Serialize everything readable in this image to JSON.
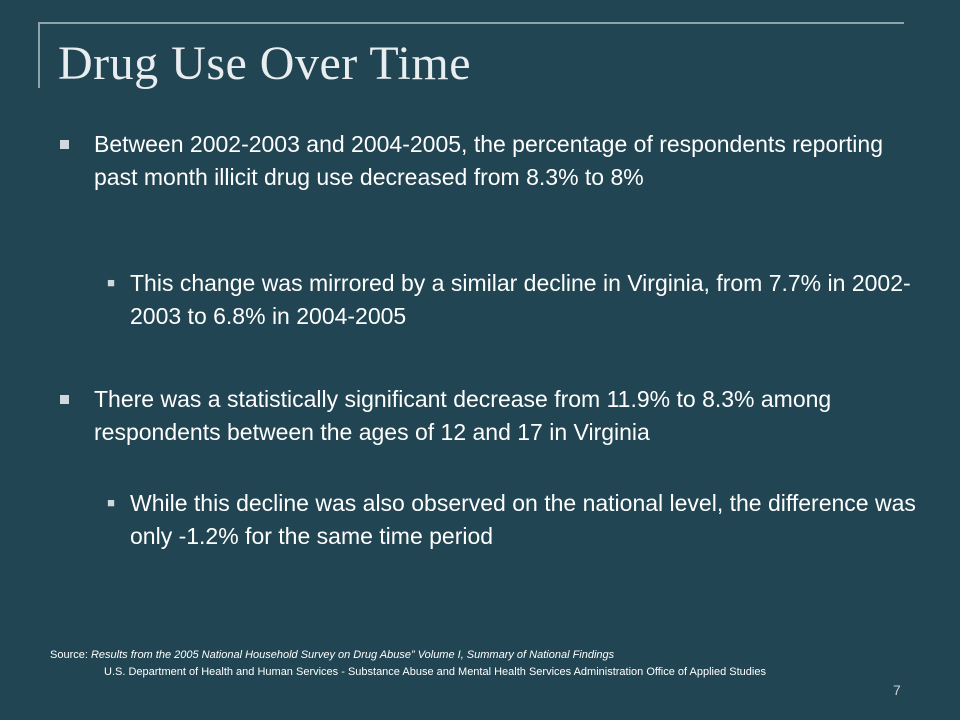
{
  "slide": {
    "title": "Drug Use Over Time",
    "page_number": "7"
  },
  "bullets": [
    {
      "level": 1,
      "text": "Between 2002-2003 and 2004-2005, the percentage of respondents reporting past month illicit drug use decreased from 8.3% to 8%"
    },
    {
      "level": 2,
      "text": "This change was mirrored by a similar decline in Virginia, from 7.7% in 2002-2003 to 6.8% in 2004-2005"
    },
    {
      "level": 1,
      "text": "There was a statistically significant decrease from 11.9% to 8.3% among respondents between the ages of 12 and 17 in Virginia"
    },
    {
      "level": 2,
      "text": "While this decline was also observed on the national level, the difference was only -1.2% for the same time period"
    }
  ],
  "source": {
    "label": "Source:",
    "title": "Results from the 2005 National Household Survey on Drug Abuse”  Volume I, Summary of National Findings",
    "agency": "U.S. Department of Health and Human Services -  Substance Abuse and Mental Health Services Administration Office of Applied Studies"
  },
  "colors": {
    "background": "#214552",
    "frame": "#8fa3ab",
    "text": "#ffffff"
  }
}
